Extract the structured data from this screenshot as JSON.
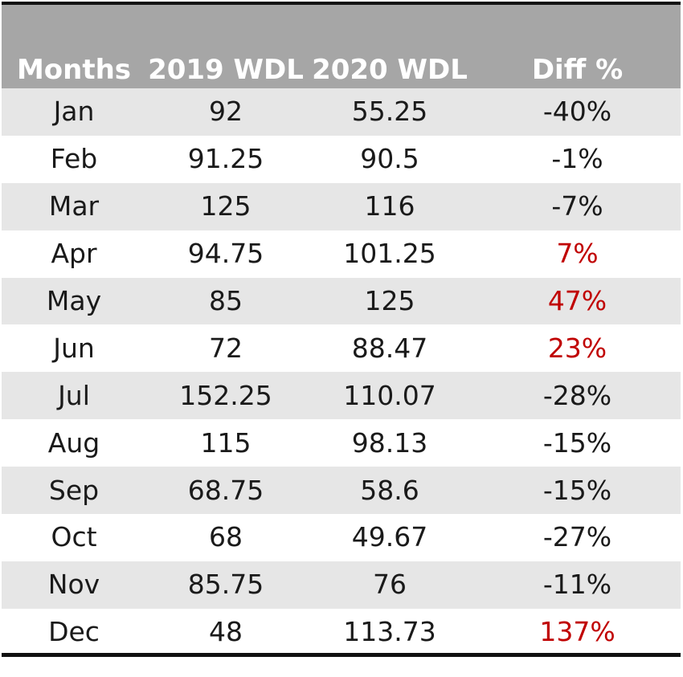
{
  "chart_data": {
    "type": "table",
    "columns": [
      "Months",
      "2019 WDL",
      "2020 WDL",
      "Diff %"
    ],
    "rows": [
      {
        "month": "Jan",
        "wdl_2019": "92",
        "wdl_2020": "55.25",
        "diff": "-40%",
        "positive": false
      },
      {
        "month": "Feb",
        "wdl_2019": "91.25",
        "wdl_2020": "90.5",
        "diff": "-1%",
        "positive": false
      },
      {
        "month": "Mar",
        "wdl_2019": "125",
        "wdl_2020": "116",
        "diff": "-7%",
        "positive": false
      },
      {
        "month": "Apr",
        "wdl_2019": "94.75",
        "wdl_2020": "101.25",
        "diff": "7%",
        "positive": true
      },
      {
        "month": "May",
        "wdl_2019": "85",
        "wdl_2020": "125",
        "diff": "47%",
        "positive": true
      },
      {
        "month": "Jun",
        "wdl_2019": "72",
        "wdl_2020": "88.47",
        "diff": "23%",
        "positive": true
      },
      {
        "month": "Jul",
        "wdl_2019": "152.25",
        "wdl_2020": "110.07",
        "diff": "-28%",
        "positive": false
      },
      {
        "month": "Aug",
        "wdl_2019": "115",
        "wdl_2020": "98.13",
        "diff": "-15%",
        "positive": false
      },
      {
        "month": "Sep",
        "wdl_2019": "68.75",
        "wdl_2020": "58.6",
        "diff": "-15%",
        "positive": false
      },
      {
        "month": "Oct",
        "wdl_2019": "68",
        "wdl_2020": "49.67",
        "diff": "-27%",
        "positive": false
      },
      {
        "month": "Nov",
        "wdl_2019": "85.75",
        "wdl_2020": "76",
        "diff": "-11%",
        "positive": false
      },
      {
        "month": "Dec",
        "wdl_2019": "48",
        "wdl_2020": "113.73",
        "diff": "137%",
        "positive": true
      }
    ],
    "colors": {
      "header_background": "#a6a6a6",
      "header_text": "#ffffff",
      "shaded_row": "#e6e6e6",
      "positive_diff": "#c00000",
      "border": "#111111"
    }
  }
}
